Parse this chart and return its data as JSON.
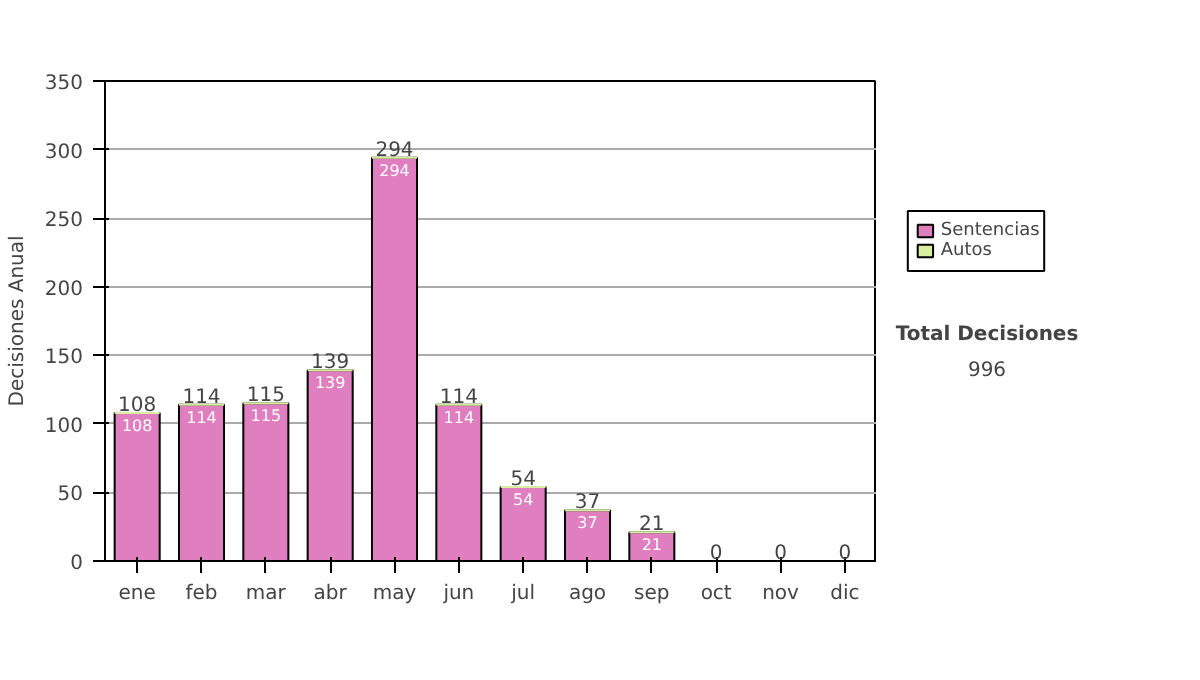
{
  "chart_data": {
    "type": "bar",
    "stacked": true,
    "ylabel": "Decisiones Anual",
    "categories": [
      "ene",
      "feb",
      "mar",
      "abr",
      "may",
      "jun",
      "jul",
      "ago",
      "sep",
      "oct",
      "nov",
      "dic"
    ],
    "series": [
      {
        "name": "Sentencias",
        "color": "#e07fc0",
        "values": [
          108,
          114,
          115,
          139,
          294,
          114,
          54,
          37,
          21,
          0,
          0,
          0
        ],
        "value_labels": [
          "108",
          "114",
          "115",
          "139",
          "294",
          "114",
          "54",
          "37",
          "21",
          null,
          null,
          null
        ]
      },
      {
        "name": "Autos",
        "color": "#d8eea0",
        "values": [
          0,
          0,
          0,
          0,
          0,
          0,
          0,
          0,
          0,
          0,
          0,
          0
        ]
      }
    ],
    "totals": [
      "108",
      "114",
      "115",
      "139",
      "294",
      "114",
      "54",
      "37",
      "21",
      "0",
      "0",
      "0"
    ],
    "ylim": [
      0,
      350
    ],
    "yticks": [
      0,
      50,
      100,
      150,
      200,
      250,
      300,
      350
    ],
    "grid": "y",
    "legend": "right",
    "annotations": [
      "Total Decisiones",
      "996"
    ]
  }
}
